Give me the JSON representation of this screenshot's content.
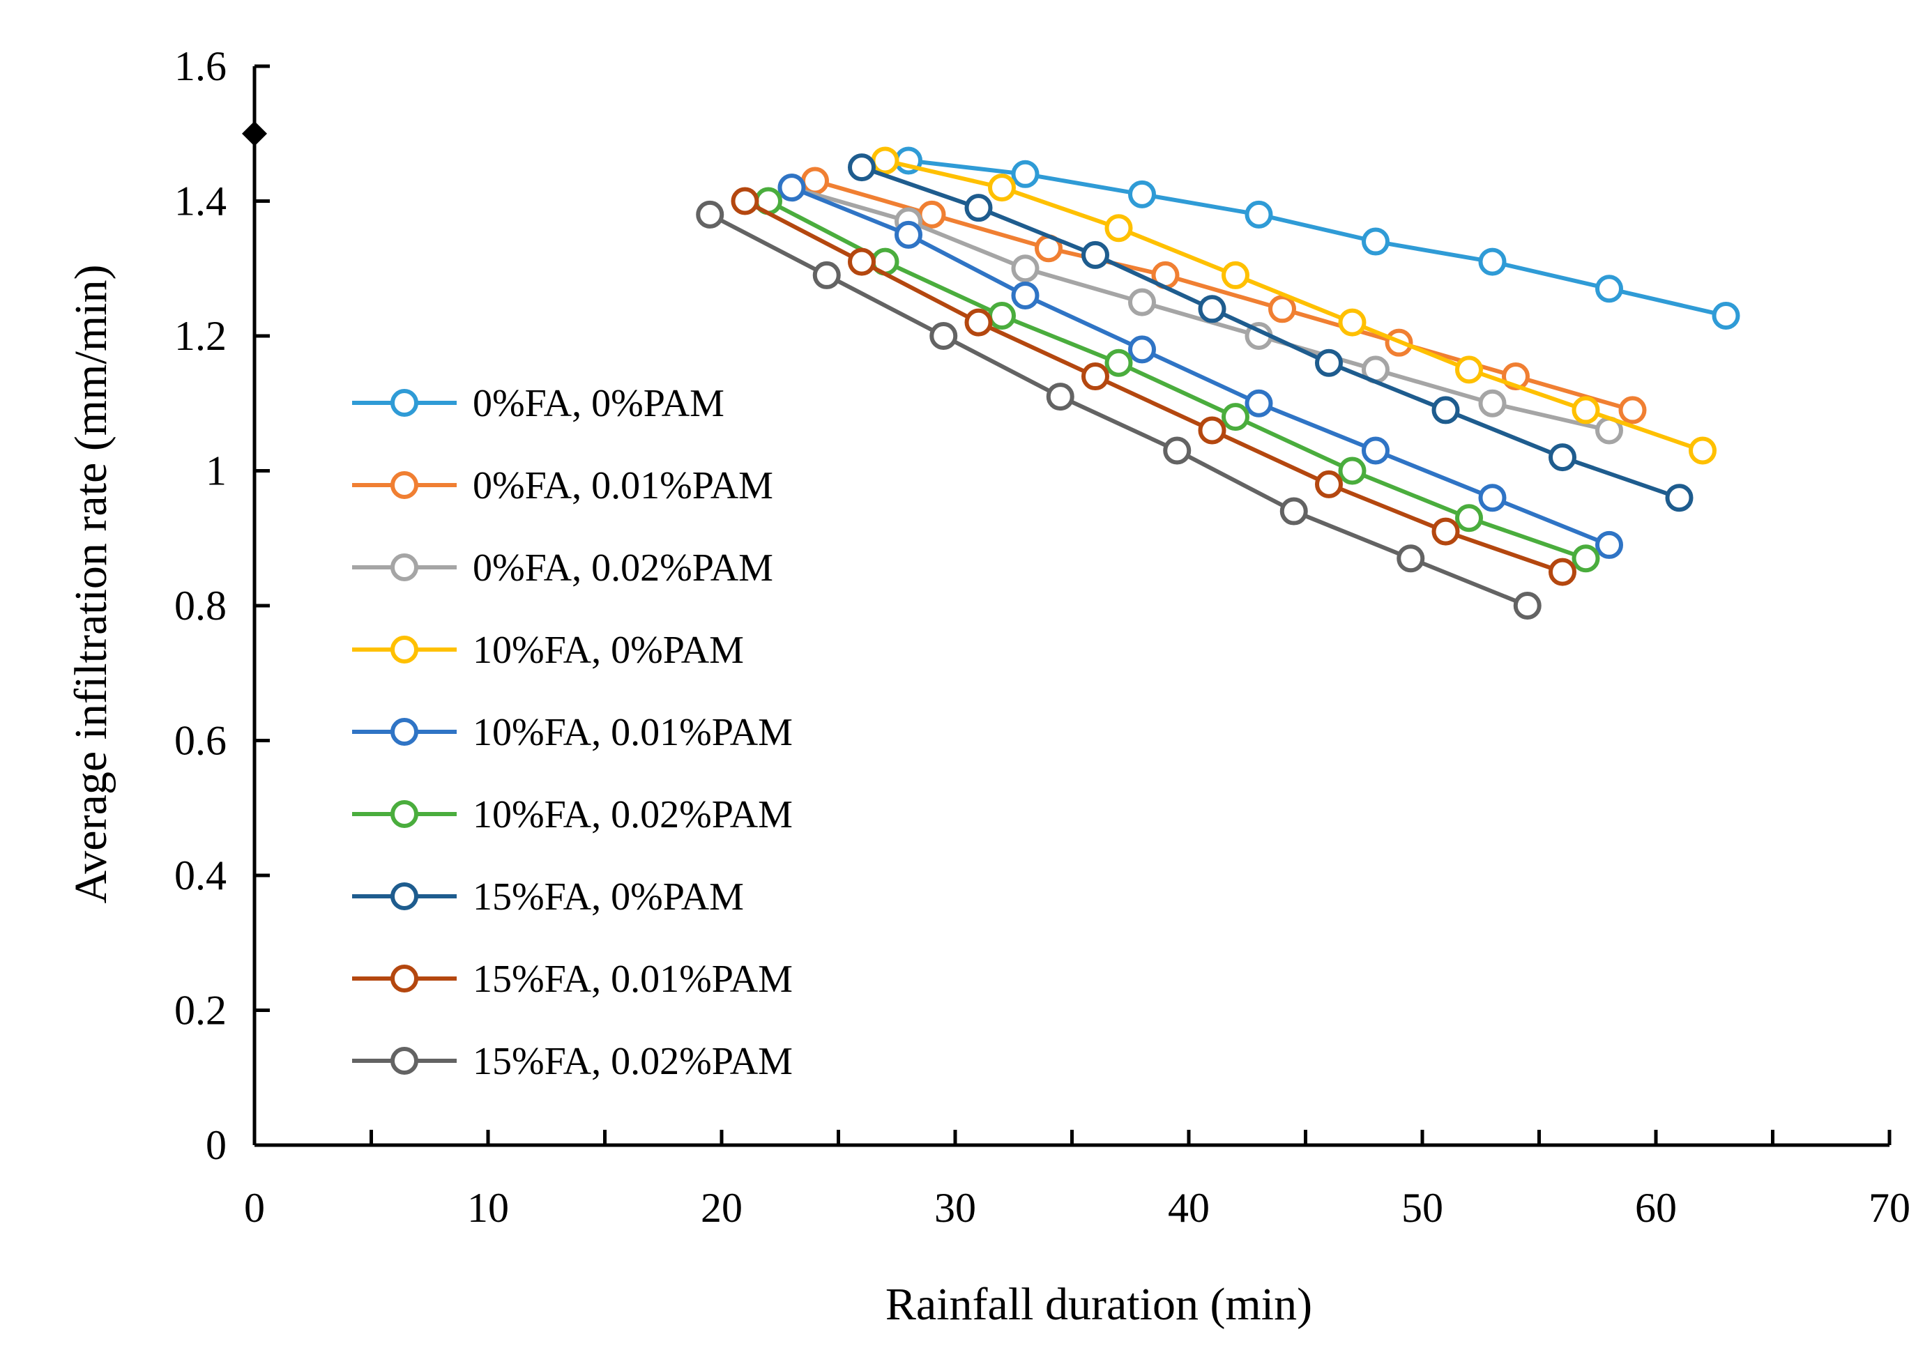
{
  "chart_data": {
    "type": "line",
    "title": "",
    "xlabel": "Rainfall duration (min)",
    "ylabel": "Average infiltration rate (mm/min)",
    "xlim": [
      0,
      70
    ],
    "ylim": [
      0,
      1.6
    ],
    "x_ticks": [
      0,
      10,
      20,
      30,
      40,
      50,
      60,
      70
    ],
    "x_tick_labels": [
      "0",
      "10",
      "20",
      "30",
      "40",
      "50",
      "60",
      "70"
    ],
    "y_ticks": [
      0,
      0.2,
      0.4,
      0.6,
      0.8,
      1.0,
      1.2,
      1.4,
      1.6
    ],
    "y_tick_labels": [
      "0",
      "0.2",
      "0.4",
      "0.6",
      "0.8",
      "1",
      "1.2",
      "1.4",
      "1.6"
    ],
    "grid": false,
    "legend_position": "left",
    "initial_marker": {
      "x": 0,
      "y": 1.5,
      "color": "#000000",
      "shape": "diamond"
    },
    "series": [
      {
        "name": "0%FA, 0%PAM",
        "color": "#2f9bd6",
        "x": [
          28,
          33,
          38,
          43,
          48,
          53,
          58,
          63
        ],
        "y": [
          1.46,
          1.44,
          1.41,
          1.38,
          1.34,
          1.31,
          1.27,
          1.23
        ]
      },
      {
        "name": "0%FA, 0.01%PAM",
        "color": "#f07f32",
        "x": [
          24,
          29,
          34,
          39,
          44,
          49,
          54,
          59
        ],
        "y": [
          1.43,
          1.38,
          1.33,
          1.29,
          1.24,
          1.19,
          1.14,
          1.09
        ]
      },
      {
        "name": "0%FA, 0.02%PAM",
        "color": "#a5a5a5",
        "x": [
          23,
          28,
          33,
          38,
          43,
          48,
          53,
          58
        ],
        "y": [
          1.42,
          1.37,
          1.3,
          1.25,
          1.2,
          1.15,
          1.1,
          1.06
        ]
      },
      {
        "name": "10%FA, 0%PAM",
        "color": "#ffc000",
        "x": [
          27,
          32,
          37,
          42,
          47,
          52,
          57,
          62
        ],
        "y": [
          1.46,
          1.42,
          1.36,
          1.29,
          1.22,
          1.15,
          1.09,
          1.03
        ]
      },
      {
        "name": "10%FA, 0.01%PAM",
        "color": "#2f74c5",
        "x": [
          23,
          28,
          33,
          38,
          43,
          48,
          53,
          58
        ],
        "y": [
          1.42,
          1.35,
          1.26,
          1.18,
          1.1,
          1.03,
          0.96,
          0.89
        ]
      },
      {
        "name": "10%FA, 0.02%PAM",
        "color": "#4aad3d",
        "x": [
          22,
          27,
          32,
          37,
          42,
          47,
          52,
          57
        ],
        "y": [
          1.4,
          1.31,
          1.23,
          1.16,
          1.08,
          1.0,
          0.93,
          0.87
        ]
      },
      {
        "name": "15%FA, 0%PAM",
        "color": "#1e5c8e",
        "x": [
          26,
          31,
          36,
          41,
          46,
          51,
          56,
          61
        ],
        "y": [
          1.45,
          1.39,
          1.32,
          1.24,
          1.16,
          1.09,
          1.02,
          0.96
        ]
      },
      {
        "name": "15%FA, 0.01%PAM",
        "color": "#b4470f",
        "x": [
          21,
          26,
          31,
          36,
          41,
          46,
          51,
          56
        ],
        "y": [
          1.4,
          1.31,
          1.22,
          1.14,
          1.06,
          0.98,
          0.91,
          0.85
        ]
      },
      {
        "name": "15%FA, 0.02%PAM",
        "color": "#636363",
        "x": [
          19.5,
          24.5,
          29.5,
          34.5,
          39.5,
          44.5,
          49.5,
          54.5
        ],
        "y": [
          1.38,
          1.29,
          1.2,
          1.11,
          1.03,
          0.94,
          0.87,
          0.8
        ]
      }
    ]
  }
}
